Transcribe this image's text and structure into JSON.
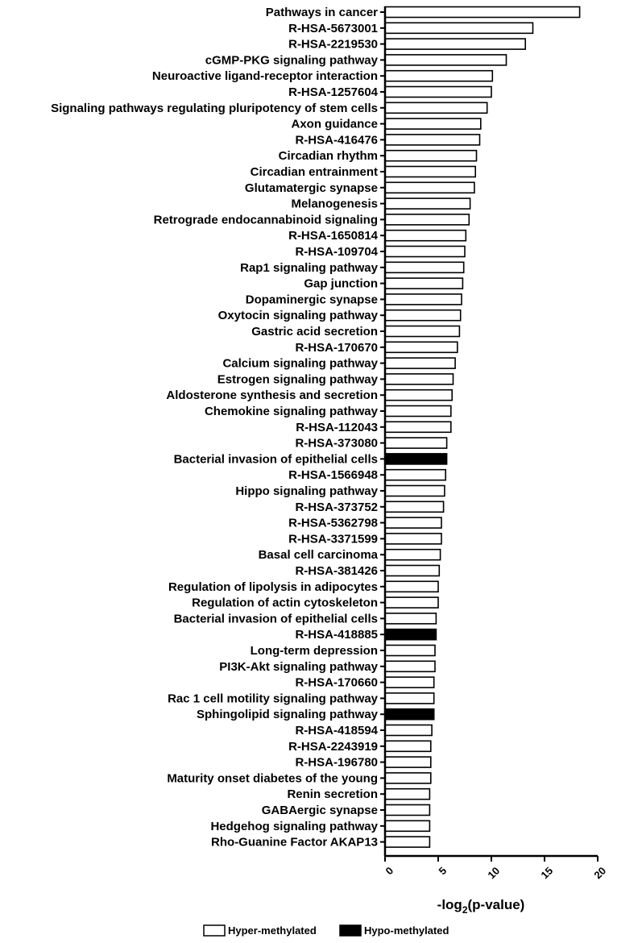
{
  "chart_data": {
    "type": "bar",
    "orientation": "horizontal",
    "title": "",
    "xlabel": "-log",
    "xlabel_sub": "2",
    "xlabel_suffix": "(p-value)",
    "ylabel": "",
    "xlim": [
      0,
      20
    ],
    "xticks": [
      0,
      5,
      10,
      15,
      20
    ],
    "grid": false,
    "legend_position": "bottom",
    "series": [
      {
        "name": "Hyper-methylated",
        "color": "#ffffff"
      },
      {
        "name": "Hypo-methylated",
        "color": "#000000"
      }
    ],
    "categories": [
      "Pathways in cancer",
      "R-HSA-5673001",
      "R-HSA-2219530",
      "cGMP-PKG signaling pathway",
      "Neuroactive ligand-receptor interaction",
      "R-HSA-1257604",
      "Signaling pathways regulating pluripotency of stem cells",
      "Axon guidance",
      "R-HSA-416476",
      "Circadian rhythm",
      "Circadian entrainment",
      "Glutamatergic synapse",
      "Melanogenesis",
      "Retrograde endocannabinoid signaling",
      "R-HSA-1650814",
      "R-HSA-109704",
      "Rap1 signaling pathway",
      "Gap junction",
      "Dopaminergic synapse",
      "Oxytocin signaling pathway",
      "Gastric acid secretion",
      "R-HSA-170670",
      "Calcium signaling pathway",
      "Estrogen signaling pathway",
      "Aldosterone synthesis and secretion",
      "Chemokine signaling pathway",
      "R-HSA-112043",
      "R-HSA-373080",
      "Bacterial invasion of epithelial cells",
      "R-HSA-1566948",
      "Hippo signaling pathway",
      "R-HSA-373752",
      "R-HSA-5362798",
      "R-HSA-3371599",
      "Basal cell carcinoma",
      "R-HSA-381426",
      "Regulation of lipolysis in adipocytes",
      "Regulation of actin cytoskeleton",
      "Bacterial invasion of epithelial cells",
      "R-HSA-418885",
      "Long-term depression",
      "PI3K-Akt signaling pathway",
      "R-HSA-170660",
      "Rac 1 cell motility signaling pathway",
      "Sphingolipid signaling pathway",
      "R-HSA-418594",
      "R-HSA-2243919",
      "R-HSA-196780",
      "Maturity onset diabetes of the young",
      "Renin secretion",
      "GABAergic synapse",
      "Hedgehog signaling pathway",
      "Rho-Guanine Factor AKAP13"
    ],
    "values": [
      18.3,
      13.9,
      13.2,
      11.4,
      10.1,
      10.0,
      9.6,
      9.0,
      8.9,
      8.6,
      8.5,
      8.4,
      8.0,
      7.9,
      7.6,
      7.5,
      7.4,
      7.3,
      7.2,
      7.1,
      7.0,
      6.8,
      6.6,
      6.4,
      6.3,
      6.2,
      6.2,
      5.8,
      5.8,
      5.7,
      5.6,
      5.5,
      5.3,
      5.3,
      5.2,
      5.1,
      5.0,
      5.0,
      4.8,
      4.8,
      4.7,
      4.7,
      4.6,
      4.6,
      4.6,
      4.4,
      4.3,
      4.3,
      4.3,
      4.2,
      4.2,
      4.2,
      4.2
    ],
    "groups": [
      "Hyper-methylated",
      "Hyper-methylated",
      "Hyper-methylated",
      "Hyper-methylated",
      "Hyper-methylated",
      "Hyper-methylated",
      "Hyper-methylated",
      "Hyper-methylated",
      "Hyper-methylated",
      "Hyper-methylated",
      "Hyper-methylated",
      "Hyper-methylated",
      "Hyper-methylated",
      "Hyper-methylated",
      "Hyper-methylated",
      "Hyper-methylated",
      "Hyper-methylated",
      "Hyper-methylated",
      "Hyper-methylated",
      "Hyper-methylated",
      "Hyper-methylated",
      "Hyper-methylated",
      "Hyper-methylated",
      "Hyper-methylated",
      "Hyper-methylated",
      "Hyper-methylated",
      "Hyper-methylated",
      "Hyper-methylated",
      "Hypo-methylated",
      "Hyper-methylated",
      "Hyper-methylated",
      "Hyper-methylated",
      "Hyper-methylated",
      "Hyper-methylated",
      "Hyper-methylated",
      "Hyper-methylated",
      "Hyper-methylated",
      "Hyper-methylated",
      "Hyper-methylated",
      "Hypo-methylated",
      "Hyper-methylated",
      "Hyper-methylated",
      "Hyper-methylated",
      "Hyper-methylated",
      "Hypo-methylated",
      "Hyper-methylated",
      "Hyper-methylated",
      "Hyper-methylated",
      "Hyper-methylated",
      "Hyper-methylated",
      "Hyper-methylated",
      "Hyper-methylated",
      "Hyper-methylated"
    ]
  }
}
